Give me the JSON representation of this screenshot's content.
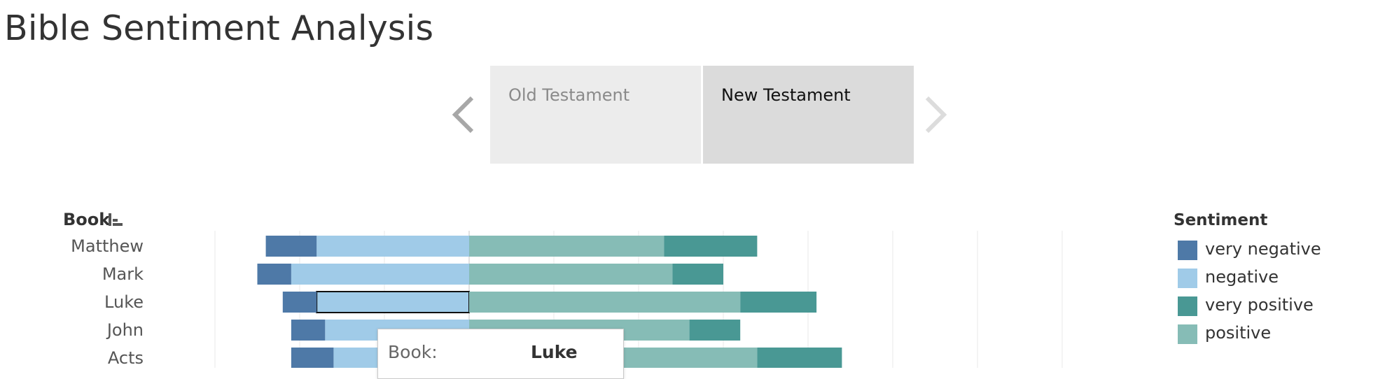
{
  "page_title": "Bible Sentiment Analysis",
  "selector": {
    "tabs": [
      {
        "label": "Old Testament",
        "selected": false
      },
      {
        "label": "New Testament",
        "selected": true
      }
    ],
    "prev_icon": "chevron-left-icon",
    "next_icon": "chevron-right-icon"
  },
  "chart_data": {
    "type": "bar",
    "orientation": "horizontal",
    "stacked": "diverging",
    "row_header": "Book",
    "categories": [
      "Matthew",
      "Mark",
      "Luke",
      "John",
      "Acts"
    ],
    "series": [
      {
        "name": "very negative",
        "color": "#4e79a7",
        "side": "negative",
        "values": [
          0.6,
          0.4,
          0.4,
          0.4,
          0.5
        ]
      },
      {
        "name": "negative",
        "color": "#a0cbe8",
        "side": "negative",
        "values": [
          1.8,
          2.1,
          1.8,
          1.7,
          1.6
        ]
      },
      {
        "name": "positive",
        "color": "#86bcb6",
        "side": "positive",
        "values": [
          2.3,
          2.4,
          3.2,
          2.6,
          3.4
        ]
      },
      {
        "name": "very positive",
        "color": "#499894",
        "side": "positive",
        "values": [
          1.1,
          0.6,
          0.9,
          0.6,
          1.0
        ]
      }
    ],
    "xlim": [
      -5,
      9
    ],
    "grid_step": 1,
    "grid": true,
    "legend_position": "right",
    "highlight": {
      "category": "Luke",
      "series": "negative"
    }
  },
  "legend": {
    "title": "Sentiment",
    "items": [
      {
        "label": "very negative",
        "color": "#4e79a7"
      },
      {
        "label": "negative",
        "color": "#a0cbe8"
      },
      {
        "label": "very positive",
        "color": "#499894"
      },
      {
        "label": "positive",
        "color": "#86bcb6"
      }
    ]
  },
  "tooltip": {
    "key": "Book:",
    "value": "Luke"
  }
}
